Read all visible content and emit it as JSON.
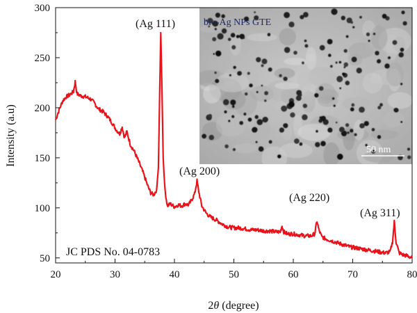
{
  "chart_data": {
    "type": "line",
    "xlabel_prefix": "2",
    "xlabel_symbol": "θ",
    "xlabel_suffix": " (degree)",
    "ylabel": "Intensity (a.u)",
    "xlim": [
      20,
      80
    ],
    "ylim": [
      45,
      300
    ],
    "xticks": [
      20,
      30,
      40,
      50,
      60,
      70,
      80
    ],
    "yticks": [
      50,
      100,
      150,
      200,
      250,
      300
    ],
    "line_color": "#e8141b",
    "series": [
      {
        "values": [
          [
            20,
            188
          ],
          [
            20.6,
            198
          ],
          [
            21.2,
            207
          ],
          [
            21.8,
            211
          ],
          [
            22.4,
            213
          ],
          [
            23.0,
            216
          ],
          [
            23.3,
            226
          ],
          [
            23.6,
            214
          ],
          [
            24.2,
            212
          ],
          [
            25.0,
            211
          ],
          [
            25.8,
            209
          ],
          [
            26.5,
            205
          ],
          [
            27.2,
            199
          ],
          [
            28.0,
            196
          ],
          [
            28.8,
            191
          ],
          [
            29.5,
            185
          ],
          [
            30.2,
            178
          ],
          [
            30.8,
            174
          ],
          [
            31.2,
            181
          ],
          [
            31.6,
            170
          ],
          [
            32.0,
            176
          ],
          [
            32.6,
            163
          ],
          [
            33.2,
            157
          ],
          [
            34.0,
            146
          ],
          [
            34.8,
            134
          ],
          [
            35.5,
            122
          ],
          [
            36.0,
            115
          ],
          [
            36.5,
            113
          ],
          [
            37.0,
            118
          ],
          [
            37.3,
            140
          ],
          [
            37.5,
            210
          ],
          [
            37.7,
            275
          ],
          [
            37.9,
            220
          ],
          [
            38.1,
            150
          ],
          [
            38.4,
            118
          ],
          [
            38.8,
            102
          ],
          [
            39.3,
            104
          ],
          [
            40.0,
            101
          ],
          [
            40.6,
            103
          ],
          [
            41.2,
            102
          ],
          [
            41.8,
            104
          ],
          [
            42.4,
            103
          ],
          [
            42.9,
            108
          ],
          [
            43.4,
            114
          ],
          [
            43.8,
            127
          ],
          [
            44.1,
            116
          ],
          [
            44.6,
            102
          ],
          [
            45.3,
            95
          ],
          [
            46.0,
            91
          ],
          [
            47.0,
            88
          ],
          [
            48.0,
            84
          ],
          [
            49.0,
            81
          ],
          [
            50.0,
            80
          ],
          [
            51.0,
            80
          ],
          [
            52.0,
            79
          ],
          [
            53.0,
            78
          ],
          [
            54.0,
            78
          ],
          [
            55.0,
            77
          ],
          [
            56.0,
            77
          ],
          [
            57.0,
            76
          ],
          [
            57.8,
            76
          ],
          [
            58.1,
            82
          ],
          [
            58.4,
            76
          ],
          [
            59.0,
            74
          ],
          [
            60.0,
            74
          ],
          [
            61.0,
            73
          ],
          [
            62.0,
            72
          ],
          [
            63.0,
            72
          ],
          [
            63.6,
            74
          ],
          [
            64.0,
            87
          ],
          [
            64.3,
            78
          ],
          [
            64.8,
            71
          ],
          [
            65.5,
            69
          ],
          [
            66.5,
            67
          ],
          [
            67.5,
            65
          ],
          [
            68.5,
            63
          ],
          [
            69.5,
            61
          ],
          [
            70.5,
            60
          ],
          [
            71.5,
            59
          ],
          [
            72.5,
            58
          ],
          [
            73.5,
            57
          ],
          [
            74.5,
            56
          ],
          [
            75.5,
            55
          ],
          [
            76.3,
            56
          ],
          [
            76.7,
            66
          ],
          [
            77.0,
            86
          ],
          [
            77.3,
            66
          ],
          [
            77.8,
            55
          ],
          [
            78.5,
            53
          ],
          [
            79.2,
            52
          ],
          [
            80.0,
            50
          ]
        ]
      }
    ],
    "annotations": {
      "peak_111": "(Ag 111)",
      "peak_200": "(Ag 200)",
      "peak_220": "(Ag 220)",
      "peak_311": "(Ag 311)",
      "reference": "JC PDS No. 04-0783"
    },
    "inset": {
      "label": "bio-Ag NPs GTE",
      "scale_bar": "50 nm"
    },
    "grid": false
  }
}
